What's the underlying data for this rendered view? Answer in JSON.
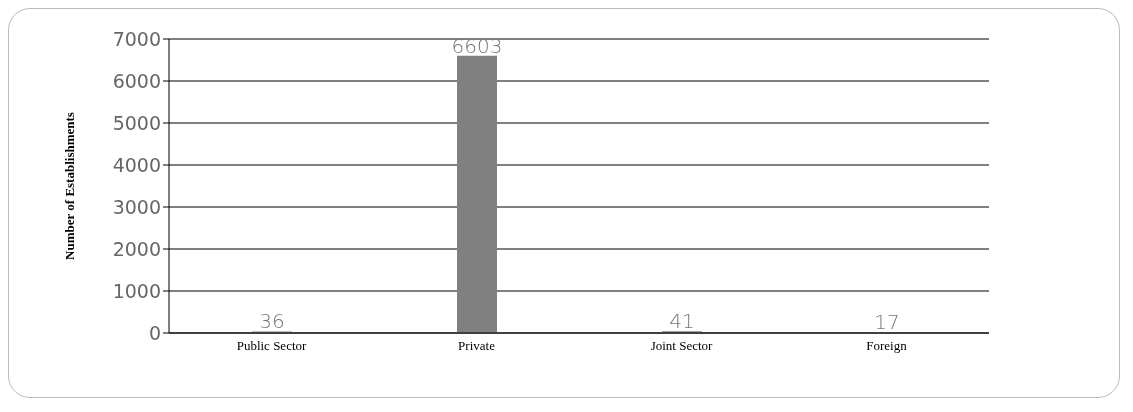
{
  "chart_data": {
    "type": "bar",
    "ylabel": "Number of Establishments",
    "categories": [
      "Public Sector",
      "Private",
      "Joint Sector",
      "Foreign"
    ],
    "values": [
      36,
      6603,
      41,
      17
    ],
    "color": "#808080",
    "ylim": [
      0,
      7000
    ],
    "yticks": [
      0,
      1000,
      2000,
      3000,
      4000,
      5000,
      6000,
      7000
    ],
    "grid": "y",
    "data_labels": true
  }
}
